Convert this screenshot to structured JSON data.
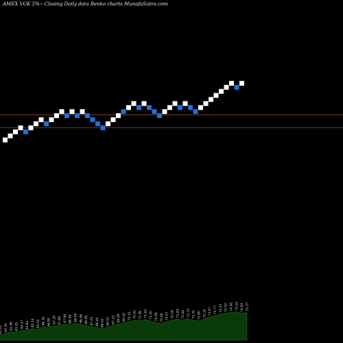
{
  "chart_data": {
    "type": "renko",
    "title": "AMEX VGK 5%-- Closing Daily data Renko charts MunafaSutra.com",
    "colors": {
      "background": "#000000",
      "up_brick": "#ffffff",
      "down_brick": "#1e6fe0",
      "reference_line": "#7a3a1e",
      "volume_fill": "#0a3a0a",
      "volume_stroke": "#1a5c1a"
    },
    "reference_lines": [
      0.335,
      0.372
    ],
    "bricks": [
      {
        "dir": "up",
        "level": 0
      },
      {
        "dir": "up",
        "level": 1
      },
      {
        "dir": "up",
        "level": 2
      },
      {
        "dir": "up",
        "level": 3
      },
      {
        "dir": "down",
        "level": 2
      },
      {
        "dir": "up",
        "level": 3
      },
      {
        "dir": "up",
        "level": 4
      },
      {
        "dir": "up",
        "level": 5
      },
      {
        "dir": "down",
        "level": 4
      },
      {
        "dir": "up",
        "level": 5
      },
      {
        "dir": "up",
        "level": 6
      },
      {
        "dir": "up",
        "level": 7
      },
      {
        "dir": "down",
        "level": 6
      },
      {
        "dir": "up",
        "level": 7
      },
      {
        "dir": "down",
        "level": 6
      },
      {
        "dir": "up",
        "level": 7
      },
      {
        "dir": "down",
        "level": 6
      },
      {
        "dir": "down",
        "level": 5
      },
      {
        "dir": "down",
        "level": 4
      },
      {
        "dir": "down",
        "level": 3
      },
      {
        "dir": "up",
        "level": 4
      },
      {
        "dir": "up",
        "level": 5
      },
      {
        "dir": "up",
        "level": 6
      },
      {
        "dir": "down",
        "level": 7
      },
      {
        "dir": "up",
        "level": 8
      },
      {
        "dir": "up",
        "level": 9
      },
      {
        "dir": "down",
        "level": 8
      },
      {
        "dir": "up",
        "level": 9
      },
      {
        "dir": "down",
        "level": 8
      },
      {
        "dir": "down",
        "level": 7
      },
      {
        "dir": "down",
        "level": 6
      },
      {
        "dir": "up",
        "level": 7
      },
      {
        "dir": "up",
        "level": 8
      },
      {
        "dir": "up",
        "level": 9
      },
      {
        "dir": "down",
        "level": 8
      },
      {
        "dir": "up",
        "level": 9
      },
      {
        "dir": "down",
        "level": 8
      },
      {
        "dir": "down",
        "level": 7
      },
      {
        "dir": "up",
        "level": 8
      },
      {
        "dir": "up",
        "level": 9
      },
      {
        "dir": "up",
        "level": 10
      },
      {
        "dir": "up",
        "level": 11
      },
      {
        "dir": "up",
        "level": 12
      },
      {
        "dir": "up",
        "level": 13
      },
      {
        "dir": "up",
        "level": 14
      },
      {
        "dir": "down",
        "level": 13
      },
      {
        "dir": "up",
        "level": 14
      }
    ],
    "volume_series": [
      0.12,
      0.18,
      0.22,
      0.2,
      0.26,
      0.24,
      0.3,
      0.28,
      0.35,
      0.32,
      0.38,
      0.36,
      0.42,
      0.4,
      0.44,
      0.41,
      0.38,
      0.35,
      0.33,
      0.3,
      0.34,
      0.38,
      0.42,
      0.45,
      0.48,
      0.52,
      0.5,
      0.54,
      0.5,
      0.46,
      0.44,
      0.48,
      0.52,
      0.55,
      0.52,
      0.56,
      0.52,
      0.5,
      0.55,
      0.6,
      0.64,
      0.68,
      0.7,
      0.72,
      0.74,
      0.7,
      0.72
    ],
    "volume_labels": [
      "61.51",
      "62.30",
      "62.96",
      "63.35",
      "64.27",
      "64.84",
      "65.14",
      "65.55",
      "66.30",
      "66.80",
      "67.20",
      "67.68",
      "67.84",
      "68.59",
      "68.65",
      "68.98",
      "68.06",
      "67.02",
      "66.40",
      "66.02",
      "66.53",
      "67.12",
      "68.28",
      "69.42",
      "70.15",
      "70.92",
      "71.38",
      "71.65",
      "71.20",
      "70.66",
      "70.06",
      "70.57",
      "71.16",
      "71.83",
      "72.44",
      "72.72",
      "72.31",
      "71.80",
      "72.20",
      "73.07",
      "73.77",
      "74.23",
      "74.52",
      "74.90",
      "75.20",
      "74.83",
      "75.37"
    ]
  }
}
